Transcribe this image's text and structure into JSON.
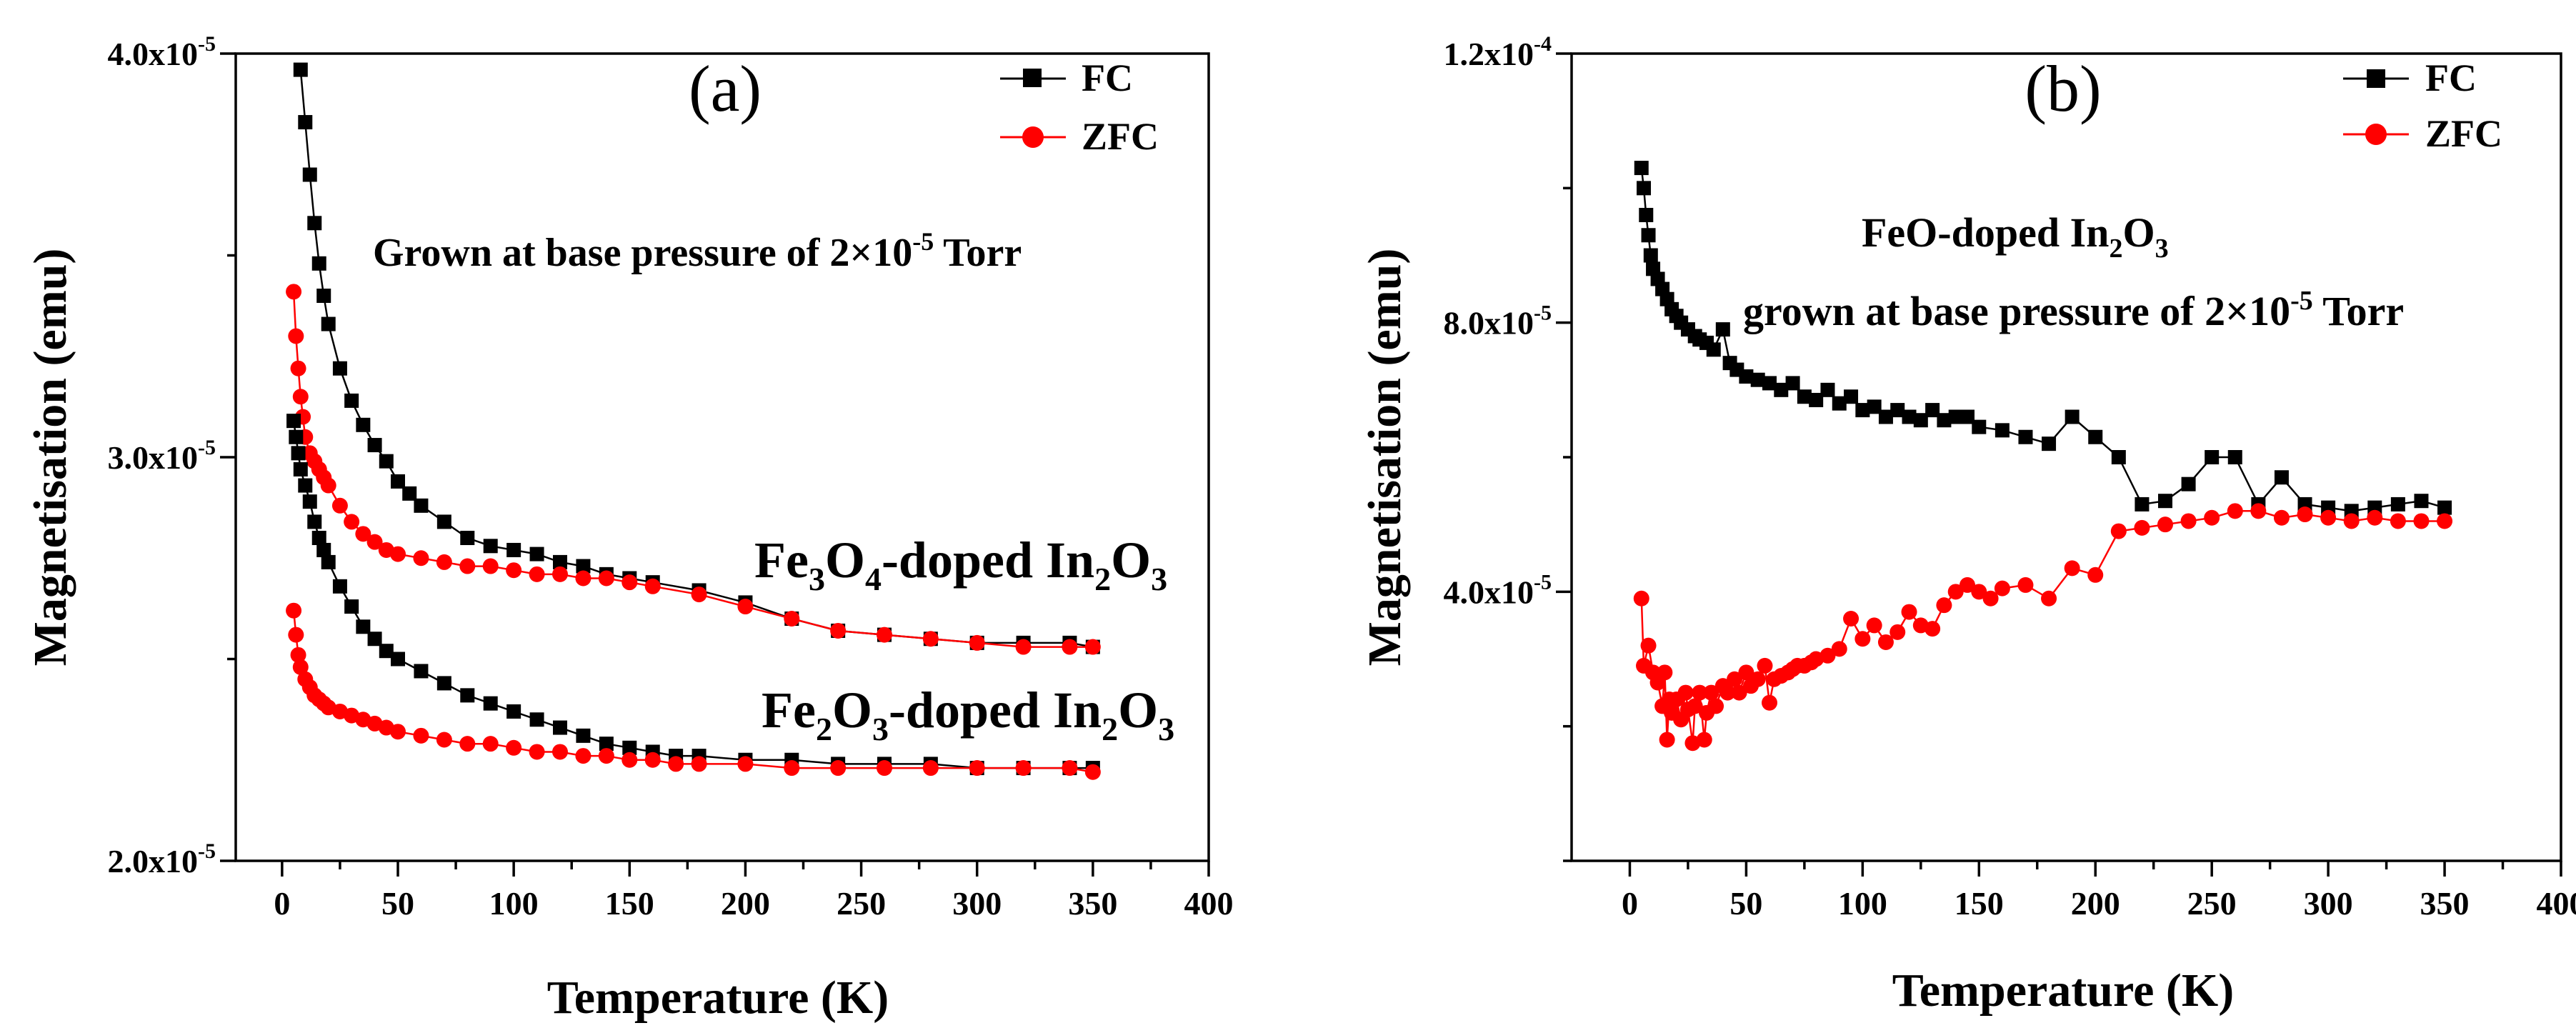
{
  "chart_data": [
    {
      "type": "scatter",
      "panel_label": "(a)",
      "xlabel": "Temperature (K)",
      "ylabel": "Magnetisation (emu)",
      "xlim": [
        -20,
        400
      ],
      "ylim": [
        2e-05,
        4e-05
      ],
      "x_ticks": [
        0,
        50,
        100,
        150,
        200,
        250,
        300,
        350,
        400
      ],
      "x_tick_labels": [
        "0",
        "50",
        "100",
        "150",
        "200",
        "250",
        "300",
        "350",
        "400"
      ],
      "y_ticks": [
        {
          "value": 2e-05,
          "mantissa": "2.0x10",
          "exp": "-5"
        },
        {
          "value": 3e-05,
          "mantissa": "3.0x10",
          "exp": "-5"
        },
        {
          "value": 4e-05,
          "mantissa": "4.0x10",
          "exp": "-5"
        }
      ],
      "legend": [
        {
          "name": "FC",
          "marker": "square",
          "color": "#000000"
        },
        {
          "name": "ZFC",
          "marker": "circle",
          "color": "#ff0000"
        }
      ],
      "annotations": {
        "pressure": {
          "main": "Grown at base pressure of 2×10",
          "exp": "-5",
          "tail": " Torr"
        },
        "fe3o4": {
          "p1": "Fe",
          "s1": "3",
          "p2": "O",
          "s2": "4",
          "p3": "-doped In",
          "s3": "2",
          "p4": "O",
          "s4": "3"
        },
        "fe2o3": {
          "p1": "Fe",
          "s1": "2",
          "p2": "O",
          "s2": "3",
          "p3": "-doped In",
          "s3": "2",
          "p4": "O",
          "s4": "3"
        }
      },
      "series": [
        {
          "name": "FC",
          "sample": "Fe3O4-doped In2O3",
          "color": "#000000",
          "marker": "square",
          "x": [
            8,
            10,
            12,
            14,
            16,
            18,
            20,
            25,
            30,
            35,
            40,
            45,
            50,
            55,
            60,
            70,
            80,
            90,
            100,
            110,
            120,
            130,
            140,
            150,
            160,
            180,
            200,
            220,
            240,
            260,
            280,
            300,
            320,
            340,
            350
          ],
          "y": [
            3.96e-05,
            3.83e-05,
            3.7e-05,
            3.58e-05,
            3.48e-05,
            3.4e-05,
            3.33e-05,
            3.22e-05,
            3.14e-05,
            3.08e-05,
            3.03e-05,
            2.99e-05,
            2.94e-05,
            2.91e-05,
            2.88e-05,
            2.84e-05,
            2.8e-05,
            2.78e-05,
            2.77e-05,
            2.76e-05,
            2.74e-05,
            2.73e-05,
            2.71e-05,
            2.7e-05,
            2.69e-05,
            2.67e-05,
            2.64e-05,
            2.6e-05,
            2.57e-05,
            2.56e-05,
            2.55e-05,
            2.54e-05,
            2.54e-05,
            2.54e-05,
            2.53e-05
          ]
        },
        {
          "name": "ZFC",
          "sample": "Fe3O4-doped In2O3",
          "color": "#ff0000",
          "marker": "circle",
          "x": [
            5,
            6,
            7,
            8,
            9,
            10,
            12,
            14,
            16,
            18,
            20,
            25,
            30,
            35,
            40,
            45,
            50,
            60,
            70,
            80,
            90,
            100,
            110,
            120,
            130,
            140,
            150,
            160,
            180,
            200,
            220,
            240,
            260,
            280,
            300,
            320,
            340,
            350
          ],
          "y": [
            3.41e-05,
            3.3e-05,
            3.22e-05,
            3.15e-05,
            3.1e-05,
            3.05e-05,
            3.01e-05,
            2.99e-05,
            2.97e-05,
            2.95e-05,
            2.93e-05,
            2.88e-05,
            2.84e-05,
            2.81e-05,
            2.79e-05,
            2.77e-05,
            2.76e-05,
            2.75e-05,
            2.74e-05,
            2.73e-05,
            2.73e-05,
            2.72e-05,
            2.71e-05,
            2.71e-05,
            2.7e-05,
            2.7e-05,
            2.69e-05,
            2.68e-05,
            2.66e-05,
            2.63e-05,
            2.6e-05,
            2.57e-05,
            2.56e-05,
            2.55e-05,
            2.54e-05,
            2.53e-05,
            2.53e-05,
            2.53e-05
          ]
        },
        {
          "name": "FC",
          "sample": "Fe2O3-doped In2O3",
          "color": "#000000",
          "marker": "square",
          "x": [
            5,
            6,
            7,
            8,
            10,
            12,
            14,
            16,
            18,
            20,
            25,
            30,
            35,
            40,
            45,
            50,
            60,
            70,
            80,
            90,
            100,
            110,
            120,
            130,
            140,
            150,
            160,
            170,
            180,
            200,
            220,
            240,
            260,
            280,
            300,
            320,
            340,
            350
          ],
          "y": [
            3.09e-05,
            3.05e-05,
            3.01e-05,
            2.97e-05,
            2.93e-05,
            2.89e-05,
            2.84e-05,
            2.8e-05,
            2.77e-05,
            2.74e-05,
            2.68e-05,
            2.63e-05,
            2.58e-05,
            2.55e-05,
            2.52e-05,
            2.5e-05,
            2.47e-05,
            2.44e-05,
            2.41e-05,
            2.39e-05,
            2.37e-05,
            2.35e-05,
            2.33e-05,
            2.31e-05,
            2.29e-05,
            2.28e-05,
            2.27e-05,
            2.26e-05,
            2.26e-05,
            2.25e-05,
            2.25e-05,
            2.24e-05,
            2.24e-05,
            2.24e-05,
            2.23e-05,
            2.23e-05,
            2.23e-05,
            2.23e-05
          ]
        },
        {
          "name": "ZFC",
          "sample": "Fe2O3-doped In2O3",
          "color": "#ff0000",
          "marker": "circle",
          "x": [
            5,
            6,
            7,
            8,
            10,
            12,
            14,
            16,
            18,
            20,
            25,
            30,
            35,
            40,
            45,
            50,
            60,
            70,
            80,
            90,
            100,
            110,
            120,
            130,
            140,
            150,
            160,
            170,
            180,
            200,
            220,
            240,
            260,
            280,
            300,
            320,
            340,
            350
          ],
          "y": [
            2.62e-05,
            2.56e-05,
            2.51e-05,
            2.48e-05,
            2.45e-05,
            2.43e-05,
            2.41e-05,
            2.4e-05,
            2.39e-05,
            2.38e-05,
            2.37e-05,
            2.36e-05,
            2.35e-05,
            2.34e-05,
            2.33e-05,
            2.32e-05,
            2.31e-05,
            2.3e-05,
            2.29e-05,
            2.29e-05,
            2.28e-05,
            2.27e-05,
            2.27e-05,
            2.26e-05,
            2.26e-05,
            2.25e-05,
            2.25e-05,
            2.24e-05,
            2.24e-05,
            2.24e-05,
            2.23e-05,
            2.23e-05,
            2.23e-05,
            2.23e-05,
            2.23e-05,
            2.23e-05,
            2.23e-05,
            2.22e-05
          ]
        }
      ]
    },
    {
      "type": "scatter",
      "panel_label": "(b)",
      "xlabel": "Temperature (K)",
      "ylabel": "Magnetisation (emu)",
      "xlim": [
        -25,
        400
      ],
      "ylim": [
        0,
        0.00012
      ],
      "x_ticks": [
        0,
        50,
        100,
        150,
        200,
        250,
        300,
        350,
        400
      ],
      "x_tick_labels": [
        "0",
        "50",
        "100",
        "150",
        "200",
        "250",
        "300",
        "350",
        "400"
      ],
      "y_ticks": [
        {
          "value": 4e-05,
          "mantissa": "4.0x10",
          "exp": "-5"
        },
        {
          "value": 8e-05,
          "mantissa": "8.0x10",
          "exp": "-5"
        },
        {
          "value": 0.00012,
          "mantissa": "1.2x10",
          "exp": "-4"
        }
      ],
      "legend": [
        {
          "name": "FC",
          "marker": "square",
          "color": "#000000"
        },
        {
          "name": "ZFC",
          "marker": "circle",
          "color": "#ff0000"
        }
      ],
      "annotations": {
        "line1": {
          "p1": "FeO-doped In",
          "s1": "2",
          "p2": "O",
          "s2": "3"
        },
        "line2": {
          "main": "grown at base pressure of 2×10",
          "exp": "-5",
          "tail": " Torr"
        }
      },
      "series": [
        {
          "name": "FC",
          "sample": "FeO-doped In2O3",
          "color": "#000000",
          "marker": "square",
          "x": [
            5,
            6,
            7,
            8,
            9,
            10,
            12,
            14,
            16,
            18,
            20,
            22,
            25,
            28,
            30,
            33,
            36,
            40,
            43,
            46,
            50,
            55,
            60,
            65,
            70,
            75,
            80,
            85,
            90,
            95,
            100,
            105,
            110,
            115,
            120,
            125,
            130,
            135,
            140,
            145,
            150,
            160,
            170,
            180,
            190,
            200,
            210,
            220,
            230,
            240,
            250,
            260,
            270,
            280,
            290,
            300,
            310,
            320,
            330,
            340,
            350
          ],
          "y": [
            0.000103,
            0.0001,
            9.6e-05,
            9.3e-05,
            9e-05,
            8.8e-05,
            8.65e-05,
            8.5e-05,
            8.35e-05,
            8.2e-05,
            8.1e-05,
            8e-05,
            7.9e-05,
            7.8e-05,
            7.75e-05,
            7.7e-05,
            7.6e-05,
            7.9e-05,
            7.4e-05,
            7.3e-05,
            7.2e-05,
            7.15e-05,
            7.1e-05,
            7e-05,
            7.1e-05,
            6.9e-05,
            6.85e-05,
            7e-05,
            6.8e-05,
            6.9e-05,
            6.7e-05,
            6.75e-05,
            6.6e-05,
            6.7e-05,
            6.6e-05,
            6.55e-05,
            6.7e-05,
            6.55e-05,
            6.6e-05,
            6.6e-05,
            6.45e-05,
            6.4e-05,
            6.3e-05,
            6.2e-05,
            6.6e-05,
            6.3e-05,
            6e-05,
            5.3e-05,
            5.35e-05,
            5.6e-05,
            6e-05,
            6e-05,
            5.3e-05,
            5.7e-05,
            5.3e-05,
            5.25e-05,
            5.2e-05,
            5.25e-05,
            5.3e-05,
            5.35e-05,
            5.25e-05
          ]
        },
        {
          "name": "ZFC",
          "sample": "FeO-doped In2O3",
          "color": "#ff0000",
          "marker": "circle",
          "x": [
            5,
            6,
            8,
            10,
            12,
            14,
            15,
            16,
            17,
            18,
            20,
            22,
            24,
            25,
            27,
            28,
            30,
            32,
            33,
            35,
            37,
            40,
            42,
            45,
            47,
            50,
            52,
            55,
            58,
            60,
            62,
            65,
            68,
            70,
            72,
            75,
            78,
            80,
            85,
            90,
            95,
            100,
            105,
            110,
            115,
            120,
            125,
            130,
            135,
            140,
            145,
            150,
            155,
            160,
            170,
            180,
            190,
            200,
            210,
            220,
            230,
            240,
            250,
            260,
            270,
            280,
            290,
            300,
            310,
            320,
            330,
            340,
            350
          ],
          "y": [
            3.9e-05,
            2.9e-05,
            3.2e-05,
            2.8e-05,
            2.65e-05,
            2.3e-05,
            2.8e-05,
            1.8e-05,
            2.4e-05,
            2.2e-05,
            2.4e-05,
            2.1e-05,
            2.5e-05,
            2.25e-05,
            1.75e-05,
            2.3e-05,
            2.5e-05,
            1.8e-05,
            2.2e-05,
            2.5e-05,
            2.3e-05,
            2.6e-05,
            2.5e-05,
            2.7e-05,
            2.5e-05,
            2.8e-05,
            2.6e-05,
            2.7e-05,
            2.9e-05,
            2.35e-05,
            2.7e-05,
            2.75e-05,
            2.8e-05,
            2.85e-05,
            2.9e-05,
            2.9e-05,
            2.95e-05,
            3e-05,
            3.05e-05,
            3.15e-05,
            3.6e-05,
            3.3e-05,
            3.5e-05,
            3.25e-05,
            3.4e-05,
            3.7e-05,
            3.5e-05,
            3.45e-05,
            3.8e-05,
            4e-05,
            4.1e-05,
            4e-05,
            3.9e-05,
            4.05e-05,
            4.1e-05,
            3.9e-05,
            4.35e-05,
            4.25e-05,
            4.9e-05,
            4.95e-05,
            5e-05,
            5.05e-05,
            5.1e-05,
            5.2e-05,
            5.2e-05,
            5.1e-05,
            5.15e-05,
            5.1e-05,
            5.05e-05,
            5.1e-05,
            5.05e-05,
            5.05e-05,
            5.05e-05
          ]
        }
      ]
    }
  ]
}
